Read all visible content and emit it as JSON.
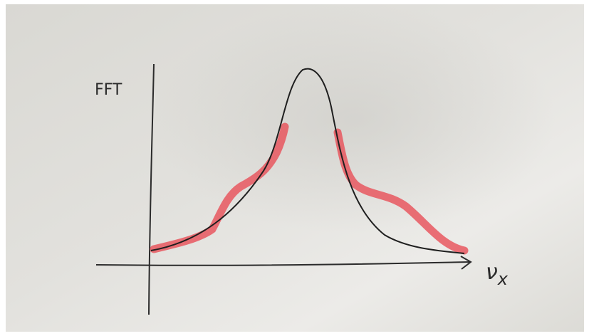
{
  "sketch": {
    "y_axis_label": "FFT",
    "x_axis_label": {
      "symbol": "ν",
      "subscript": "x"
    }
  }
}
